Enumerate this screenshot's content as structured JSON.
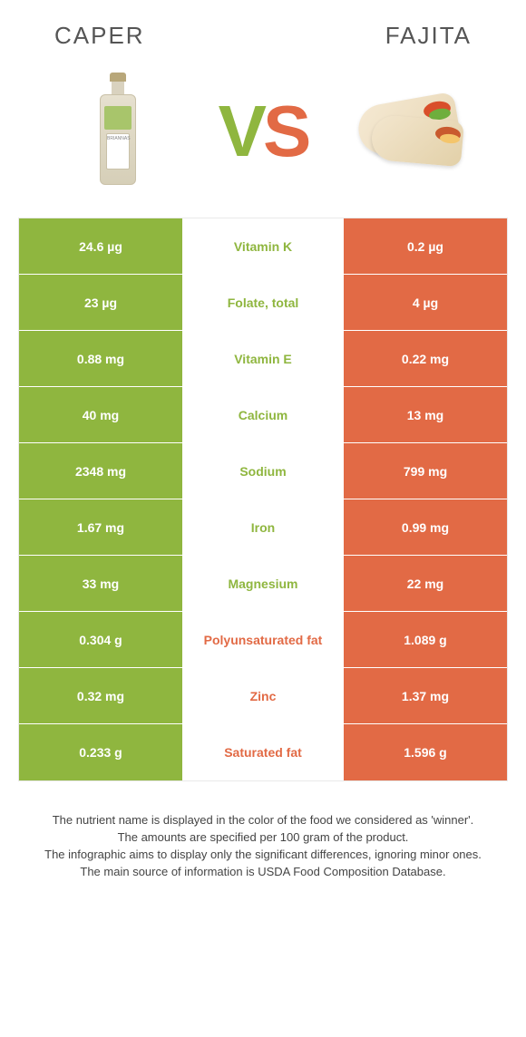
{
  "colors": {
    "left": "#8fb63f",
    "right": "#e26a45",
    "row_bg_light": "#ffffff",
    "row_bg_alt": "#fdfdfd"
  },
  "header": {
    "left_title": "Caper",
    "right_title": "Fajita",
    "vs_v": "V",
    "vs_s": "S"
  },
  "rows": [
    {
      "left": "24.6 µg",
      "label": "Vitamin K",
      "right": "0.2 µg",
      "winner": "left"
    },
    {
      "left": "23 µg",
      "label": "Folate, total",
      "right": "4 µg",
      "winner": "left"
    },
    {
      "left": "0.88 mg",
      "label": "Vitamin E",
      "right": "0.22 mg",
      "winner": "left"
    },
    {
      "left": "40 mg",
      "label": "Calcium",
      "right": "13 mg",
      "winner": "left"
    },
    {
      "left": "2348 mg",
      "label": "Sodium",
      "right": "799 mg",
      "winner": "left"
    },
    {
      "left": "1.67 mg",
      "label": "Iron",
      "right": "0.99 mg",
      "winner": "left"
    },
    {
      "left": "33 mg",
      "label": "Magnesium",
      "right": "22 mg",
      "winner": "left"
    },
    {
      "left": "0.304 g",
      "label": "Polyunsaturated fat",
      "right": "1.089 g",
      "winner": "right"
    },
    {
      "left": "0.32 mg",
      "label": "Zinc",
      "right": "1.37 mg",
      "winner": "right"
    },
    {
      "left": "0.233 g",
      "label": "Saturated fat",
      "right": "1.596 g",
      "winner": "right"
    }
  ],
  "footer": {
    "line1": "The nutrient name is displayed in the color of the food we considered as 'winner'.",
    "line2": "The amounts are specified per 100 gram of the product.",
    "line3": "The infographic aims to display only the significant differences, ignoring minor ones.",
    "line4": "The main source of information is USDA Food Composition Database."
  }
}
